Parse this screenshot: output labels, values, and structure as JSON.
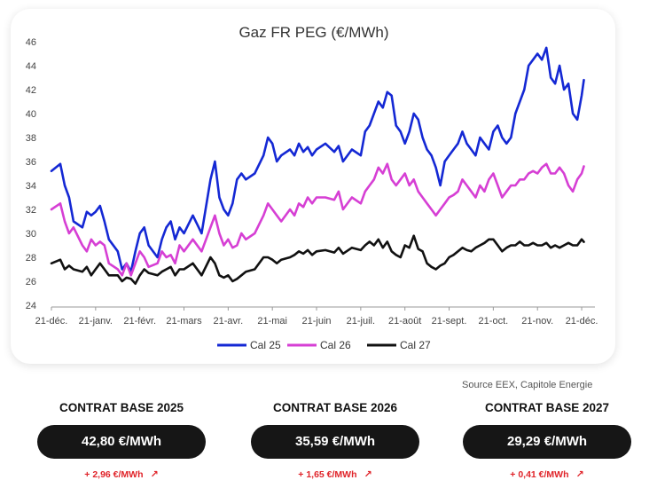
{
  "chart_data": {
    "type": "line",
    "title": "Gaz FR PEG (€/MWh)",
    "xlabel": "",
    "ylabel": "",
    "ylim": [
      24,
      46
    ],
    "yticks": [
      "24",
      "26",
      "28",
      "30",
      "32",
      "34",
      "36",
      "38",
      "40",
      "42",
      "44",
      "46"
    ],
    "xtick_labels": [
      "21-déc.",
      "21-janv.",
      "21-févr.",
      "21-mars",
      "21-avr.",
      "21-mai",
      "21-juin",
      "21-juil.",
      "21-août",
      "21-sept.",
      "21-oct.",
      "21-nov.",
      "21-déc."
    ],
    "x_range_months": [
      0,
      12.3
    ],
    "grid": false,
    "legend_position": "bottom",
    "series": [
      {
        "name": "Cal 25",
        "color": "#1428d4",
        "x": [
          0,
          0.2,
          0.3,
          0.4,
          0.5,
          0.7,
          0.8,
          0.9,
          1.0,
          1.1,
          1.2,
          1.3,
          1.5,
          1.6,
          1.7,
          1.8,
          1.9,
          2.0,
          2.1,
          2.2,
          2.4,
          2.5,
          2.6,
          2.7,
          2.8,
          2.9,
          3.0,
          3.2,
          3.4,
          3.6,
          3.7,
          3.8,
          3.9,
          4.0,
          4.1,
          4.2,
          4.3,
          4.4,
          4.6,
          4.8,
          4.9,
          5.0,
          5.1,
          5.2,
          5.4,
          5.5,
          5.6,
          5.7,
          5.8,
          5.9,
          6.0,
          6.2,
          6.4,
          6.5,
          6.6,
          6.8,
          7.0,
          7.1,
          7.2,
          7.3,
          7.4,
          7.5,
          7.6,
          7.7,
          7.8,
          7.9,
          8.0,
          8.1,
          8.2,
          8.3,
          8.4,
          8.5,
          8.6,
          8.7,
          8.8,
          8.9,
          9.0,
          9.1,
          9.2,
          9.3,
          9.4,
          9.5,
          9.6,
          9.7,
          9.8,
          9.9,
          10.0,
          10.1,
          10.2,
          10.3,
          10.4,
          10.5,
          10.6,
          10.7,
          10.8,
          10.9,
          11.0,
          11.1,
          11.2,
          11.3,
          11.4,
          11.5,
          11.6,
          11.7,
          11.8,
          11.9,
          12.0,
          12.05
        ],
        "values": [
          35.2,
          35.8,
          34.0,
          33.0,
          31.0,
          30.5,
          31.8,
          31.5,
          31.8,
          32.3,
          31.0,
          29.5,
          28.5,
          27.0,
          27.5,
          26.8,
          28.5,
          30.0,
          30.5,
          29.0,
          28.0,
          29.5,
          30.5,
          31.0,
          29.5,
          30.5,
          30.0,
          31.5,
          30.0,
          34.5,
          36.0,
          33.0,
          32.0,
          31.5,
          32.5,
          34.5,
          35.0,
          34.5,
          35.0,
          36.5,
          38.0,
          37.5,
          36.0,
          36.5,
          37.0,
          36.5,
          37.5,
          36.8,
          37.2,
          36.5,
          37.0,
          37.5,
          36.8,
          37.3,
          36.0,
          37.0,
          36.5,
          38.5,
          39.0,
          40.0,
          41.0,
          40.5,
          41.8,
          41.5,
          39.0,
          38.5,
          37.5,
          38.5,
          40.0,
          39.5,
          38.0,
          37.0,
          36.5,
          35.5,
          34.0,
          36.0,
          36.5,
          37.0,
          37.5,
          38.5,
          37.5,
          37.0,
          36.5,
          38.0,
          37.5,
          37.0,
          38.5,
          39.0,
          38.0,
          37.5,
          38.0,
          40.0,
          41.0,
          42.0,
          44.0,
          44.5,
          45.0,
          44.5,
          45.5,
          43.0,
          42.5,
          44.0,
          42.0,
          42.5,
          40.0,
          39.5,
          41.5,
          42.8
        ]
      },
      {
        "name": "Cal 26",
        "color": "#d63fd4",
        "x": [
          0,
          0.2,
          0.3,
          0.4,
          0.5,
          0.7,
          0.8,
          0.9,
          1.0,
          1.1,
          1.2,
          1.3,
          1.5,
          1.6,
          1.7,
          1.8,
          1.9,
          2.0,
          2.1,
          2.2,
          2.4,
          2.5,
          2.6,
          2.7,
          2.8,
          2.9,
          3.0,
          3.2,
          3.4,
          3.6,
          3.7,
          3.8,
          3.9,
          4.0,
          4.1,
          4.2,
          4.3,
          4.4,
          4.6,
          4.8,
          4.9,
          5.0,
          5.1,
          5.2,
          5.4,
          5.5,
          5.6,
          5.7,
          5.8,
          5.9,
          6.0,
          6.2,
          6.4,
          6.5,
          6.6,
          6.8,
          7.0,
          7.1,
          7.2,
          7.3,
          7.4,
          7.5,
          7.6,
          7.7,
          7.8,
          7.9,
          8.0,
          8.1,
          8.2,
          8.3,
          8.4,
          8.5,
          8.6,
          8.7,
          8.8,
          8.9,
          9.0,
          9.1,
          9.2,
          9.3,
          9.4,
          9.5,
          9.6,
          9.7,
          9.8,
          9.9,
          10.0,
          10.1,
          10.2,
          10.3,
          10.4,
          10.5,
          10.6,
          10.7,
          10.8,
          10.9,
          11.0,
          11.1,
          11.2,
          11.3,
          11.4,
          11.5,
          11.6,
          11.7,
          11.8,
          11.9,
          12.0,
          12.05
        ],
        "values": [
          32.0,
          32.5,
          31.0,
          30.0,
          30.5,
          29.0,
          28.5,
          29.5,
          29.0,
          29.3,
          29.0,
          27.5,
          27.0,
          26.5,
          27.5,
          26.5,
          27.5,
          28.5,
          28.0,
          27.2,
          27.5,
          28.5,
          28.0,
          28.2,
          27.5,
          29.0,
          28.5,
          29.5,
          28.5,
          30.5,
          31.5,
          30.0,
          29.0,
          29.5,
          28.8,
          29.0,
          30.0,
          29.5,
          30.0,
          31.5,
          32.5,
          32.0,
          31.5,
          31.0,
          32.0,
          31.5,
          32.5,
          32.2,
          33.0,
          32.5,
          33.0,
          33.0,
          32.8,
          33.5,
          32.0,
          33.0,
          32.5,
          33.5,
          34.0,
          34.5,
          35.5,
          35.0,
          35.8,
          34.5,
          34.0,
          34.5,
          35.0,
          34.0,
          34.5,
          33.5,
          33.0,
          32.5,
          32.0,
          31.5,
          32.0,
          32.5,
          33.0,
          33.2,
          33.5,
          34.5,
          34.0,
          33.5,
          33.0,
          34.0,
          33.5,
          34.5,
          35.0,
          34.0,
          33.0,
          33.5,
          34.0,
          34.0,
          34.5,
          34.5,
          35.0,
          35.2,
          35.0,
          35.5,
          35.8,
          35.0,
          35.0,
          35.5,
          35.0,
          34.0,
          33.5,
          34.5,
          35.0,
          35.59
        ]
      },
      {
        "name": "Cal 27",
        "color": "#111111",
        "x": [
          0,
          0.2,
          0.3,
          0.4,
          0.5,
          0.7,
          0.8,
          0.9,
          1.0,
          1.1,
          1.2,
          1.3,
          1.5,
          1.6,
          1.7,
          1.8,
          1.9,
          2.0,
          2.1,
          2.2,
          2.4,
          2.5,
          2.6,
          2.7,
          2.8,
          2.9,
          3.0,
          3.2,
          3.4,
          3.6,
          3.7,
          3.8,
          3.9,
          4.0,
          4.1,
          4.2,
          4.3,
          4.4,
          4.6,
          4.8,
          4.9,
          5.0,
          5.1,
          5.2,
          5.4,
          5.5,
          5.6,
          5.7,
          5.8,
          5.9,
          6.0,
          6.2,
          6.4,
          6.5,
          6.6,
          6.8,
          7.0,
          7.1,
          7.2,
          7.3,
          7.4,
          7.5,
          7.6,
          7.7,
          7.8,
          7.9,
          8.0,
          8.1,
          8.2,
          8.3,
          8.4,
          8.5,
          8.6,
          8.7,
          8.8,
          8.9,
          9.0,
          9.1,
          9.2,
          9.3,
          9.4,
          9.5,
          9.6,
          9.7,
          9.8,
          9.9,
          10.0,
          10.1,
          10.2,
          10.3,
          10.4,
          10.5,
          10.6,
          10.7,
          10.8,
          10.9,
          11.0,
          11.1,
          11.2,
          11.3,
          11.4,
          11.5,
          11.6,
          11.7,
          11.8,
          11.9,
          12.0,
          12.05
        ],
        "values": [
          27.5,
          27.8,
          27.0,
          27.3,
          27.0,
          26.8,
          27.2,
          26.5,
          27.0,
          27.5,
          27.0,
          26.5,
          26.5,
          26.0,
          26.3,
          26.2,
          25.8,
          26.5,
          27.0,
          26.7,
          26.5,
          26.8,
          27.0,
          27.2,
          26.5,
          27.0,
          27.0,
          27.5,
          26.5,
          28.0,
          27.5,
          26.5,
          26.3,
          26.5,
          26.0,
          26.2,
          26.5,
          26.8,
          27.0,
          28.0,
          28.0,
          27.8,
          27.5,
          27.8,
          28.0,
          28.2,
          28.5,
          28.3,
          28.6,
          28.2,
          28.5,
          28.6,
          28.4,
          28.8,
          28.3,
          28.8,
          28.6,
          29.0,
          29.3,
          29.0,
          29.5,
          28.8,
          29.3,
          28.5,
          28.2,
          28.0,
          29.0,
          28.8,
          29.8,
          28.7,
          28.5,
          27.5,
          27.2,
          27.0,
          27.3,
          27.5,
          28.0,
          28.2,
          28.5,
          28.8,
          28.6,
          28.5,
          28.8,
          29.0,
          29.2,
          29.5,
          29.5,
          29.0,
          28.5,
          28.8,
          29.0,
          29.0,
          29.3,
          29.0,
          29.0,
          29.2,
          29.0,
          29.0,
          29.2,
          28.8,
          29.0,
          28.8,
          29.0,
          29.2,
          29.0,
          29.0,
          29.5,
          29.29
        ]
      }
    ]
  },
  "source": "Source EEX, Capitole Energie",
  "contracts": [
    {
      "title": "CONTRAT BASE 2025",
      "price": "42,80 €/MWh",
      "change": "+ 2,96 €/MWh"
    },
    {
      "title": "CONTRAT BASE 2026",
      "price": "35,59 €/MWh",
      "change": "+ 1,65 €/MWh"
    },
    {
      "title": "CONTRAT BASE 2027",
      "price": "29,29 €/MWh",
      "change": "+ 0,41 €/MWh"
    }
  ],
  "icons": {
    "trend": "arrow-up-right-icon"
  }
}
